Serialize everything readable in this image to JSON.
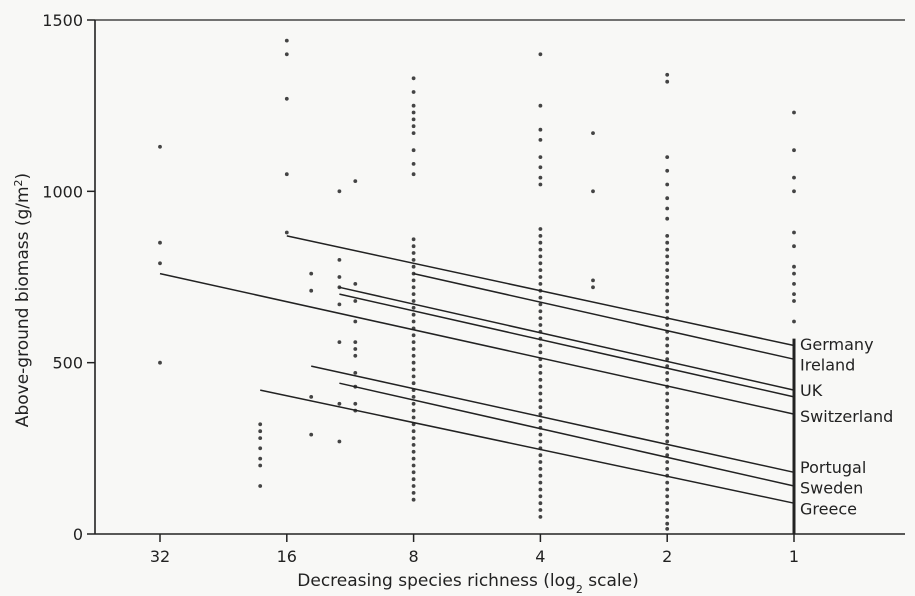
{
  "chart_data": {
    "type": "scatter",
    "title": "",
    "xlabel": "Decreasing species richness (log",
    "xlabel_sub": "2",
    "xlabel_tail": " scale)",
    "ylabel": "Above-ground biomass (g/m",
    "ylabel_sup": "2",
    "ylabel_tail": ")",
    "x_scale": "log2, reversed",
    "xlim": [
      48,
      0.6
    ],
    "ylim": [
      0,
      1500
    ],
    "x_ticks": [
      32,
      16,
      8,
      4,
      2,
      1
    ],
    "x_tick_labels": [
      "32",
      "16",
      "8",
      "4",
      "2",
      "1"
    ],
    "y_ticks": [
      0,
      500,
      1000,
      1500
    ],
    "y_tick_labels": [
      "0",
      "500",
      "1000",
      "1500"
    ],
    "grid": false,
    "colors": {
      "points": "#444444",
      "lines": "#222222",
      "axes": "#222222",
      "background": "#f8f8f6"
    },
    "points": [
      {
        "x": 32,
        "y": 1130
      },
      {
        "x": 32,
        "y": 850
      },
      {
        "x": 32,
        "y": 790
      },
      {
        "x": 32,
        "y": 500
      },
      {
        "x": 16,
        "y": 1440
      },
      {
        "x": 16,
        "y": 1400
      },
      {
        "x": 16,
        "y": 1270
      },
      {
        "x": 16,
        "y": 1050
      },
      {
        "x": 16,
        "y": 880
      },
      {
        "x": 18.5,
        "y": 320
      },
      {
        "x": 18.5,
        "y": 300
      },
      {
        "x": 18.5,
        "y": 280
      },
      {
        "x": 18.5,
        "y": 250
      },
      {
        "x": 18.5,
        "y": 220
      },
      {
        "x": 18.5,
        "y": 200
      },
      {
        "x": 18.5,
        "y": 140
      },
      {
        "x": 14,
        "y": 760
      },
      {
        "x": 14,
        "y": 710
      },
      {
        "x": 14,
        "y": 400
      },
      {
        "x": 14,
        "y": 290
      },
      {
        "x": 12,
        "y": 1000
      },
      {
        "x": 12,
        "y": 800
      },
      {
        "x": 12,
        "y": 750
      },
      {
        "x": 12,
        "y": 720
      },
      {
        "x": 12,
        "y": 670
      },
      {
        "x": 12,
        "y": 560
      },
      {
        "x": 12,
        "y": 380
      },
      {
        "x": 12,
        "y": 270
      },
      {
        "x": 11,
        "y": 1030
      },
      {
        "x": 11,
        "y": 730
      },
      {
        "x": 11,
        "y": 680
      },
      {
        "x": 11,
        "y": 620
      },
      {
        "x": 11,
        "y": 560
      },
      {
        "x": 11,
        "y": 540
      },
      {
        "x": 11,
        "y": 520
      },
      {
        "x": 11,
        "y": 470
      },
      {
        "x": 11,
        "y": 430
      },
      {
        "x": 11,
        "y": 380
      },
      {
        "x": 11,
        "y": 360
      },
      {
        "x": 8,
        "y": 1330
      },
      {
        "x": 8,
        "y": 1290
      },
      {
        "x": 8,
        "y": 1250
      },
      {
        "x": 8,
        "y": 1230
      },
      {
        "x": 8,
        "y": 1210
      },
      {
        "x": 8,
        "y": 1190
      },
      {
        "x": 8,
        "y": 1170
      },
      {
        "x": 8,
        "y": 1120
      },
      {
        "x": 8,
        "y": 1080
      },
      {
        "x": 8,
        "y": 1050
      },
      {
        "x": 8,
        "y": 860
      },
      {
        "x": 8,
        "y": 840
      },
      {
        "x": 8,
        "y": 820
      },
      {
        "x": 8,
        "y": 800
      },
      {
        "x": 8,
        "y": 780
      },
      {
        "x": 8,
        "y": 760
      },
      {
        "x": 8,
        "y": 740
      },
      {
        "x": 8,
        "y": 720
      },
      {
        "x": 8,
        "y": 700
      },
      {
        "x": 8,
        "y": 680
      },
      {
        "x": 8,
        "y": 660
      },
      {
        "x": 8,
        "y": 640
      },
      {
        "x": 8,
        "y": 620
      },
      {
        "x": 8,
        "y": 600
      },
      {
        "x": 8,
        "y": 580
      },
      {
        "x": 8,
        "y": 560
      },
      {
        "x": 8,
        "y": 540
      },
      {
        "x": 8,
        "y": 520
      },
      {
        "x": 8,
        "y": 500
      },
      {
        "x": 8,
        "y": 480
      },
      {
        "x": 8,
        "y": 460
      },
      {
        "x": 8,
        "y": 440
      },
      {
        "x": 8,
        "y": 420
      },
      {
        "x": 8,
        "y": 400
      },
      {
        "x": 8,
        "y": 380
      },
      {
        "x": 8,
        "y": 360
      },
      {
        "x": 8,
        "y": 340
      },
      {
        "x": 8,
        "y": 320
      },
      {
        "x": 8,
        "y": 300
      },
      {
        "x": 8,
        "y": 280
      },
      {
        "x": 8,
        "y": 260
      },
      {
        "x": 8,
        "y": 240
      },
      {
        "x": 8,
        "y": 220
      },
      {
        "x": 8,
        "y": 200
      },
      {
        "x": 8,
        "y": 180
      },
      {
        "x": 8,
        "y": 160
      },
      {
        "x": 8,
        "y": 140
      },
      {
        "x": 8,
        "y": 120
      },
      {
        "x": 8,
        "y": 100
      },
      {
        "x": 4,
        "y": 1400
      },
      {
        "x": 4,
        "y": 1250
      },
      {
        "x": 4,
        "y": 1180
      },
      {
        "x": 4,
        "y": 1150
      },
      {
        "x": 4,
        "y": 1100
      },
      {
        "x": 4,
        "y": 1070
      },
      {
        "x": 4,
        "y": 1040
      },
      {
        "x": 4,
        "y": 1020
      },
      {
        "x": 4,
        "y": 890
      },
      {
        "x": 4,
        "y": 870
      },
      {
        "x": 4,
        "y": 850
      },
      {
        "x": 4,
        "y": 830
      },
      {
        "x": 4,
        "y": 810
      },
      {
        "x": 4,
        "y": 790
      },
      {
        "x": 4,
        "y": 770
      },
      {
        "x": 4,
        "y": 750
      },
      {
        "x": 4,
        "y": 730
      },
      {
        "x": 4,
        "y": 710
      },
      {
        "x": 4,
        "y": 690
      },
      {
        "x": 4,
        "y": 670
      },
      {
        "x": 4,
        "y": 650
      },
      {
        "x": 4,
        "y": 630
      },
      {
        "x": 4,
        "y": 610
      },
      {
        "x": 4,
        "y": 590
      },
      {
        "x": 4,
        "y": 570
      },
      {
        "x": 4,
        "y": 550
      },
      {
        "x": 4,
        "y": 530
      },
      {
        "x": 4,
        "y": 510
      },
      {
        "x": 4,
        "y": 490
      },
      {
        "x": 4,
        "y": 470
      },
      {
        "x": 4,
        "y": 450
      },
      {
        "x": 4,
        "y": 430
      },
      {
        "x": 4,
        "y": 410
      },
      {
        "x": 4,
        "y": 390
      },
      {
        "x": 4,
        "y": 370
      },
      {
        "x": 4,
        "y": 350
      },
      {
        "x": 4,
        "y": 330
      },
      {
        "x": 4,
        "y": 310
      },
      {
        "x": 4,
        "y": 290
      },
      {
        "x": 4,
        "y": 270
      },
      {
        "x": 4,
        "y": 250
      },
      {
        "x": 4,
        "y": 230
      },
      {
        "x": 4,
        "y": 210
      },
      {
        "x": 4,
        "y": 190
      },
      {
        "x": 4,
        "y": 170
      },
      {
        "x": 4,
        "y": 150
      },
      {
        "x": 4,
        "y": 130
      },
      {
        "x": 4,
        "y": 110
      },
      {
        "x": 4,
        "y": 90
      },
      {
        "x": 4,
        "y": 70
      },
      {
        "x": 4,
        "y": 50
      },
      {
        "x": 3,
        "y": 1170
      },
      {
        "x": 3,
        "y": 1000
      },
      {
        "x": 3,
        "y": 740
      },
      {
        "x": 3,
        "y": 720
      },
      {
        "x": 2,
        "y": 1340
      },
      {
        "x": 2,
        "y": 1320
      },
      {
        "x": 2,
        "y": 1100
      },
      {
        "x": 2,
        "y": 1060
      },
      {
        "x": 2,
        "y": 1020
      },
      {
        "x": 2,
        "y": 980
      },
      {
        "x": 2,
        "y": 950
      },
      {
        "x": 2,
        "y": 920
      },
      {
        "x": 2,
        "y": 870
      },
      {
        "x": 2,
        "y": 850
      },
      {
        "x": 2,
        "y": 830
      },
      {
        "x": 2,
        "y": 810
      },
      {
        "x": 2,
        "y": 790
      },
      {
        "x": 2,
        "y": 770
      },
      {
        "x": 2,
        "y": 750
      },
      {
        "x": 2,
        "y": 730
      },
      {
        "x": 2,
        "y": 710
      },
      {
        "x": 2,
        "y": 690
      },
      {
        "x": 2,
        "y": 670
      },
      {
        "x": 2,
        "y": 650
      },
      {
        "x": 2,
        "y": 630
      },
      {
        "x": 2,
        "y": 610
      },
      {
        "x": 2,
        "y": 590
      },
      {
        "x": 2,
        "y": 570
      },
      {
        "x": 2,
        "y": 550
      },
      {
        "x": 2,
        "y": 530
      },
      {
        "x": 2,
        "y": 510
      },
      {
        "x": 2,
        "y": 490
      },
      {
        "x": 2,
        "y": 470
      },
      {
        "x": 2,
        "y": 450
      },
      {
        "x": 2,
        "y": 430
      },
      {
        "x": 2,
        "y": 410
      },
      {
        "x": 2,
        "y": 390
      },
      {
        "x": 2,
        "y": 370
      },
      {
        "x": 2,
        "y": 350
      },
      {
        "x": 2,
        "y": 330
      },
      {
        "x": 2,
        "y": 310
      },
      {
        "x": 2,
        "y": 290
      },
      {
        "x": 2,
        "y": 270
      },
      {
        "x": 2,
        "y": 250
      },
      {
        "x": 2,
        "y": 230
      },
      {
        "x": 2,
        "y": 210
      },
      {
        "x": 2,
        "y": 190
      },
      {
        "x": 2,
        "y": 170
      },
      {
        "x": 2,
        "y": 150
      },
      {
        "x": 2,
        "y": 130
      },
      {
        "x": 2,
        "y": 110
      },
      {
        "x": 2,
        "y": 90
      },
      {
        "x": 2,
        "y": 70
      },
      {
        "x": 2,
        "y": 50
      },
      {
        "x": 2,
        "y": 30
      },
      {
        "x": 2,
        "y": 15
      },
      {
        "x": 1,
        "y": 1230
      },
      {
        "x": 1,
        "y": 1120
      },
      {
        "x": 1,
        "y": 1040
      },
      {
        "x": 1,
        "y": 1000
      },
      {
        "x": 1,
        "y": 880
      },
      {
        "x": 1,
        "y": 840
      },
      {
        "x": 1,
        "y": 780
      },
      {
        "x": 1,
        "y": 760
      },
      {
        "x": 1,
        "y": 730
      },
      {
        "x": 1,
        "y": 700
      },
      {
        "x": 1,
        "y": 680
      },
      {
        "x": 1,
        "y": 620
      }
    ],
    "bar_segment": {
      "x": 1,
      "y_from": 0,
      "y_to": 570
    },
    "series": [
      {
        "name": "Germany",
        "points": [
          [
            16,
            870
          ],
          [
            1,
            550
          ]
        ]
      },
      {
        "name": "Ireland",
        "points": [
          [
            8,
            760
          ],
          [
            1,
            510
          ]
        ]
      },
      {
        "name": "UK",
        "points": [
          [
            12,
            720
          ],
          [
            1,
            420
          ]
        ]
      },
      {
        "name": "UK",
        "points": [
          [
            12,
            700
          ],
          [
            1,
            400
          ]
        ]
      },
      {
        "name": "Switzerland",
        "points": [
          [
            32,
            760
          ],
          [
            1,
            350
          ]
        ]
      },
      {
        "name": "Portugal",
        "points": [
          [
            14,
            490
          ],
          [
            1,
            180
          ]
        ]
      },
      {
        "name": "Sweden",
        "points": [
          [
            12,
            440
          ],
          [
            1,
            140
          ]
        ]
      },
      {
        "name": "Greece",
        "points": [
          [
            18.5,
            420
          ],
          [
            1,
            90
          ]
        ]
      }
    ],
    "labels": [
      {
        "text": "Germany",
        "y": 555
      },
      {
        "text": "Ireland",
        "y": 495
      },
      {
        "text": "UK",
        "y": 420
      },
      {
        "text": "Switzerland",
        "y": 345
      },
      {
        "text": "Portugal",
        "y": 195
      },
      {
        "text": "Sweden",
        "y": 135
      },
      {
        "text": "Greece",
        "y": 75
      }
    ]
  }
}
